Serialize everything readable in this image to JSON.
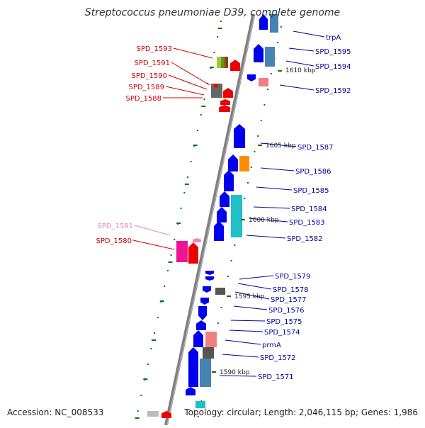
{
  "title": "Streptococcus pneumoniae D39, complete genome",
  "accession": "Accession: NC_008533",
  "topology": "Topology: circular; Length: 2,046,115 bp; Genes: 1,986",
  "colors": {
    "backbone": "#808080",
    "forward_gene": "#0000ee",
    "reverse_gene": "#ee0000",
    "tick": "#007700",
    "label_forward": "#000099",
    "label_reverse": "#cc0000",
    "label_pink": "#ee88bb"
  },
  "kbp_labels": [
    "1610 kbp",
    "1605 kbp",
    "1600 kbp",
    "1595 kbp",
    "1590 kbp"
  ],
  "genes_left": [
    {
      "name": "SPD_1593",
      "color": "#cc0000"
    },
    {
      "name": "SPD_1591",
      "color": "#cc0000"
    },
    {
      "name": "SPD_1590",
      "color": "#cc0000"
    },
    {
      "name": "SPD_1589",
      "color": "#cc0000"
    },
    {
      "name": "SPD_1588",
      "color": "#cc0000"
    },
    {
      "name": "SPD_1581",
      "color": "#ee88bb"
    },
    {
      "name": "SPD_1580",
      "color": "#cc0000"
    }
  ],
  "genes_right": [
    "trpA",
    "SPD_1595",
    "SPD_1594",
    "SPD_1592",
    "SPD_1587",
    "SPD_1586",
    "SPD_1585",
    "SPD_1584",
    "SPD_1583",
    "SPD_1582",
    "SPD_1579",
    "SPD_1578",
    "SPD_1577",
    "SPD_1576",
    "SPD_1575",
    "SPD_1574",
    "prmA",
    "SPD_1572",
    "SPD_1571"
  ]
}
